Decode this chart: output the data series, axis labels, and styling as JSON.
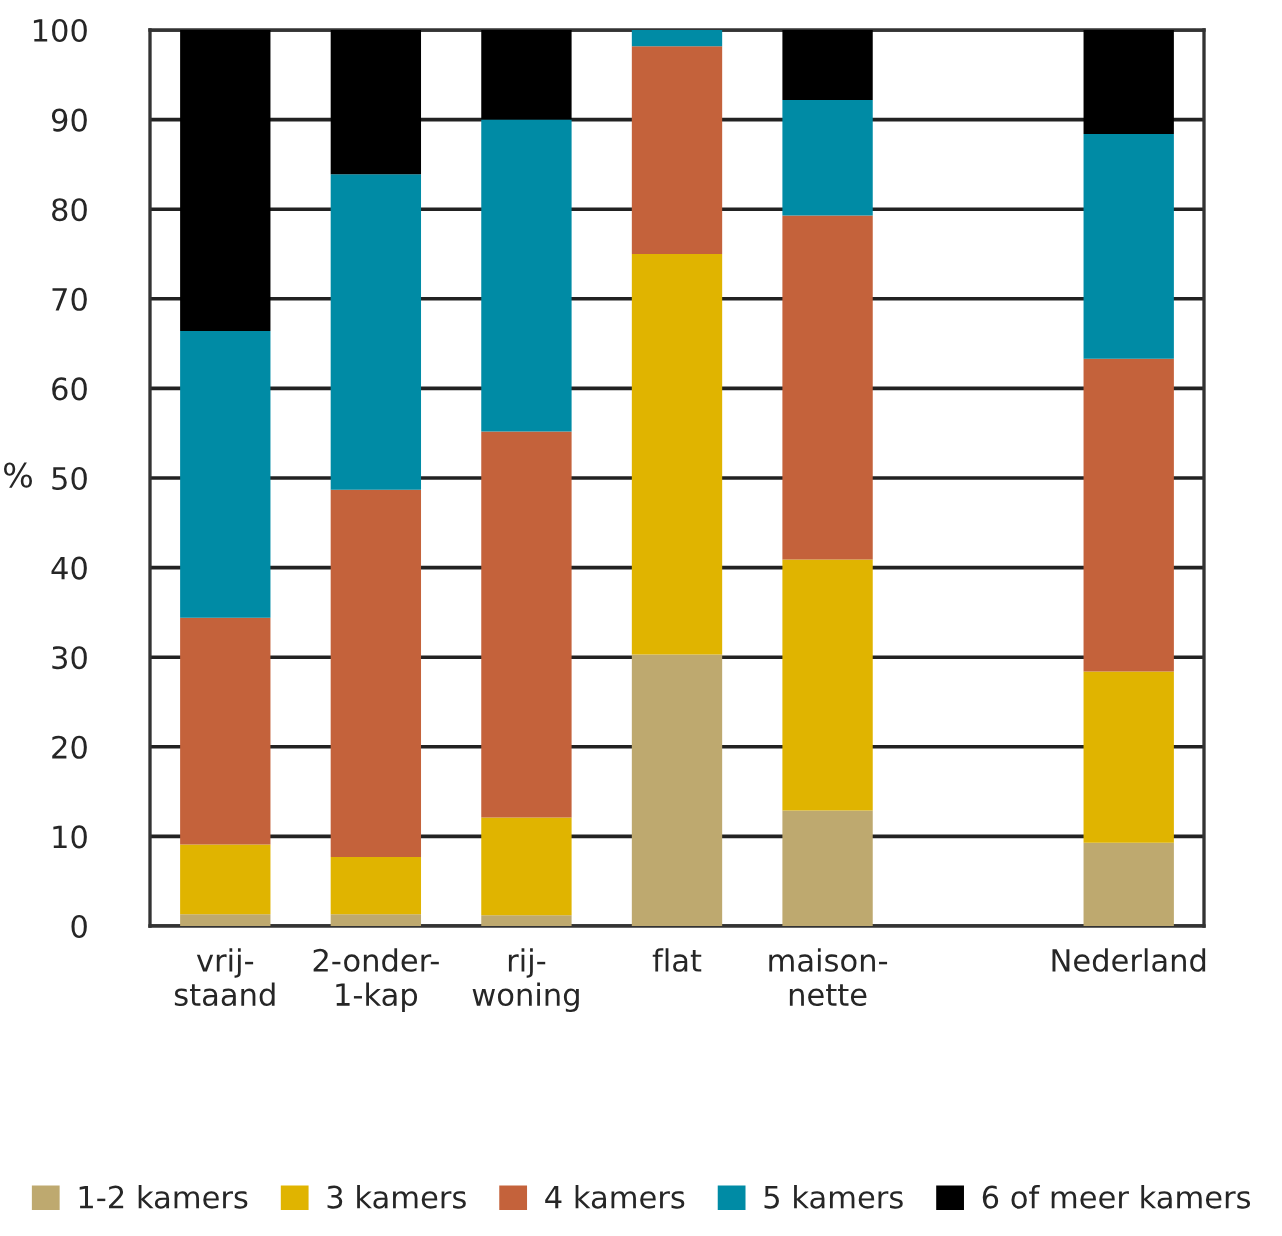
{
  "chart_data": {
    "type": "bar",
    "stacked": true,
    "ylabel": "%",
    "categories": [
      "vrij-\nstaand",
      "2-onder-\n1-kap",
      "rij-\nwoning",
      "flat",
      "maison-\nnette",
      null,
      "Nederland"
    ],
    "series": [
      {
        "name": "1-2 kamers",
        "color": "#bea96f",
        "values": [
          1.3,
          1.3,
          1.2,
          30.3,
          12.9,
          null,
          9.3
        ]
      },
      {
        "name": "3 kamers",
        "color": "#e0b400",
        "values": [
          7.8,
          6.4,
          10.9,
          44.7,
          28.0,
          null,
          19.1
        ]
      },
      {
        "name": "4 kamers",
        "color": "#c4623b",
        "values": [
          25.3,
          41.0,
          43.1,
          23.2,
          38.4,
          null,
          34.9
        ]
      },
      {
        "name": "5 kamers",
        "color": "#008ba5",
        "values": [
          32.0,
          35.2,
          34.8,
          1.8,
          12.9,
          null,
          25.1
        ]
      },
      {
        "name": "6 of meer kamers",
        "color": "#000000",
        "values": [
          33.6,
          16.1,
          10.0,
          0,
          7.8,
          null,
          11.6
        ]
      }
    ],
    "ylim": [
      0,
      100
    ],
    "yticks": [
      0,
      10,
      20,
      30,
      40,
      50,
      60,
      70,
      80,
      90,
      100
    ],
    "grid": "y",
    "legend": "bottom"
  }
}
